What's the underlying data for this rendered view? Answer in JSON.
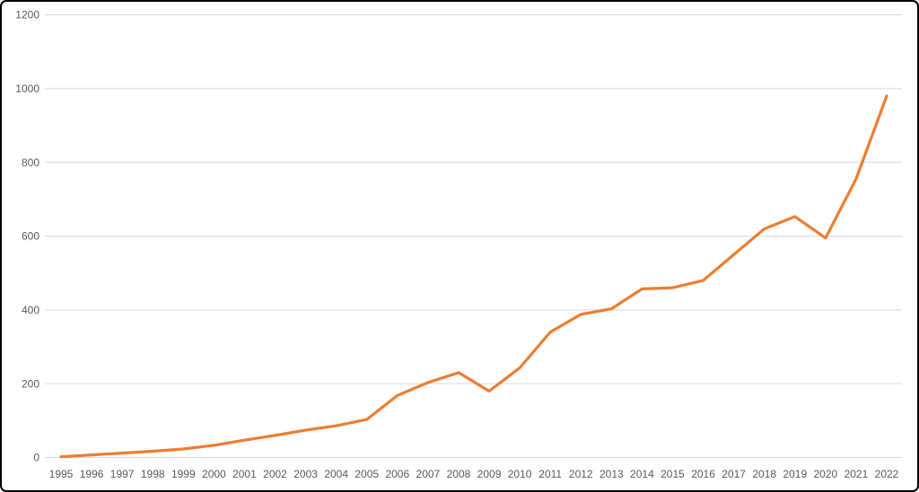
{
  "chart_data": {
    "type": "line",
    "categories": [
      "1995",
      "1996",
      "1997",
      "1998",
      "1999",
      "2000",
      "2001",
      "2002",
      "2003",
      "2004",
      "2005",
      "2006",
      "2007",
      "2008",
      "2009",
      "2010",
      "2011",
      "2012",
      "2013",
      "2014",
      "2015",
      "2016",
      "2017",
      "2018",
      "2019",
      "2020",
      "2021",
      "2022"
    ],
    "values": [
      2,
      7,
      12,
      17,
      23,
      33,
      47,
      60,
      74,
      86,
      103,
      168,
      203,
      230,
      180,
      243,
      340,
      388,
      403,
      457,
      460,
      480,
      550,
      620,
      653,
      595,
      755,
      980
    ],
    "ylim": [
      0,
      1200
    ],
    "y_ticks": [
      0,
      200,
      400,
      600,
      800,
      1000,
      1200
    ],
    "grid": true,
    "legend": "none",
    "line_color": "#ED7D31",
    "gridline_color": "#D9D9D9",
    "tick_label_color": "#595959",
    "background_color": "#FFFFFF",
    "frame_border_color": "#000000"
  }
}
